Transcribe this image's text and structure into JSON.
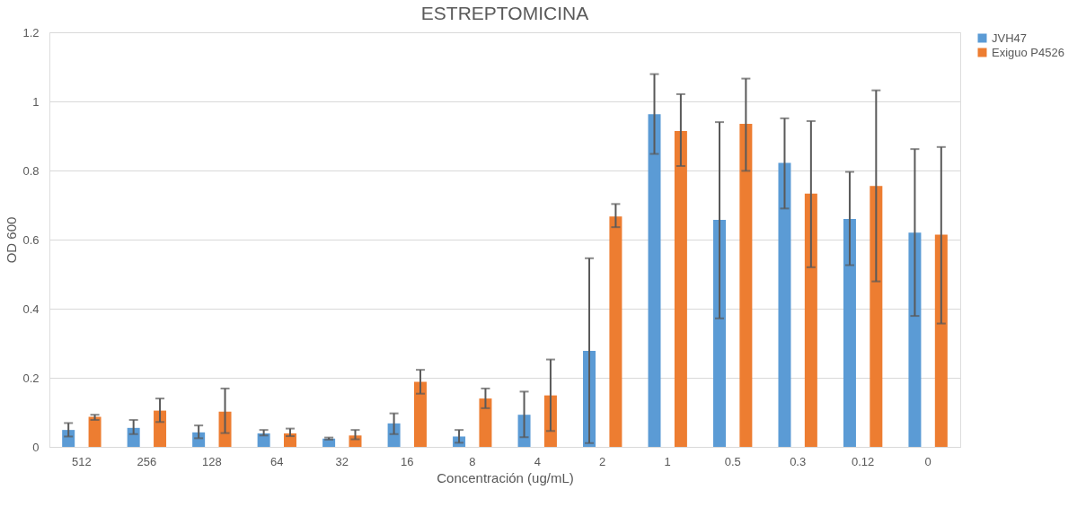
{
  "chart_data": {
    "type": "bar",
    "title": "ESTREPTOMICINA",
    "xlabel": "Concentración (ug/mL)",
    "ylabel": "OD 600",
    "categories": [
      "512",
      "256",
      "128",
      "64",
      "32",
      "16",
      "8",
      "4",
      "2",
      "1",
      "0.5",
      "0.3",
      "0.12",
      "0"
    ],
    "series": [
      {
        "name": "JVH47",
        "color": "#5b9bd5",
        "values": [
          0.049,
          0.055,
          0.042,
          0.039,
          0.024,
          0.068,
          0.03,
          0.093,
          0.278,
          0.963,
          0.657,
          0.822,
          0.66,
          0.62
        ],
        "errors": [
          [
            0.03,
            0.069
          ],
          [
            0.037,
            0.078
          ],
          [
            0.025,
            0.062
          ],
          [
            0.033,
            0.049
          ],
          [
            0.021,
            0.027
          ],
          [
            0.037,
            0.097
          ],
          [
            0.012,
            0.049
          ],
          [
            0.028,
            0.16
          ],
          [
            0.011,
            0.546
          ],
          [
            0.848,
            1.079
          ],
          [
            0.372,
            0.94
          ],
          [
            0.69,
            0.951
          ],
          [
            0.526,
            0.796
          ],
          [
            0.379,
            0.862
          ]
        ]
      },
      {
        "name": "Exiguo P4526",
        "color": "#ed7d31",
        "values": [
          0.087,
          0.105,
          0.102,
          0.039,
          0.033,
          0.188,
          0.14,
          0.149,
          0.667,
          0.914,
          0.935,
          0.733,
          0.755,
          0.614
        ],
        "errors": [
          [
            0.078,
            0.093
          ],
          [
            0.072,
            0.14
          ],
          [
            0.04,
            0.169
          ],
          [
            0.031,
            0.053
          ],
          [
            0.022,
            0.049
          ],
          [
            0.154,
            0.223
          ],
          [
            0.112,
            0.169
          ],
          [
            0.046,
            0.253
          ],
          [
            0.636,
            0.703
          ],
          [
            0.813,
            1.021
          ],
          [
            0.799,
            1.066
          ],
          [
            0.52,
            0.943
          ],
          [
            0.479,
            1.032
          ],
          [
            0.357,
            0.868
          ]
        ]
      }
    ],
    "ylim": [
      0,
      1.2
    ],
    "yticks": [
      0,
      0.2,
      0.4,
      0.6,
      0.8,
      1,
      1.2
    ],
    "grid": "y",
    "legend": "right"
  }
}
